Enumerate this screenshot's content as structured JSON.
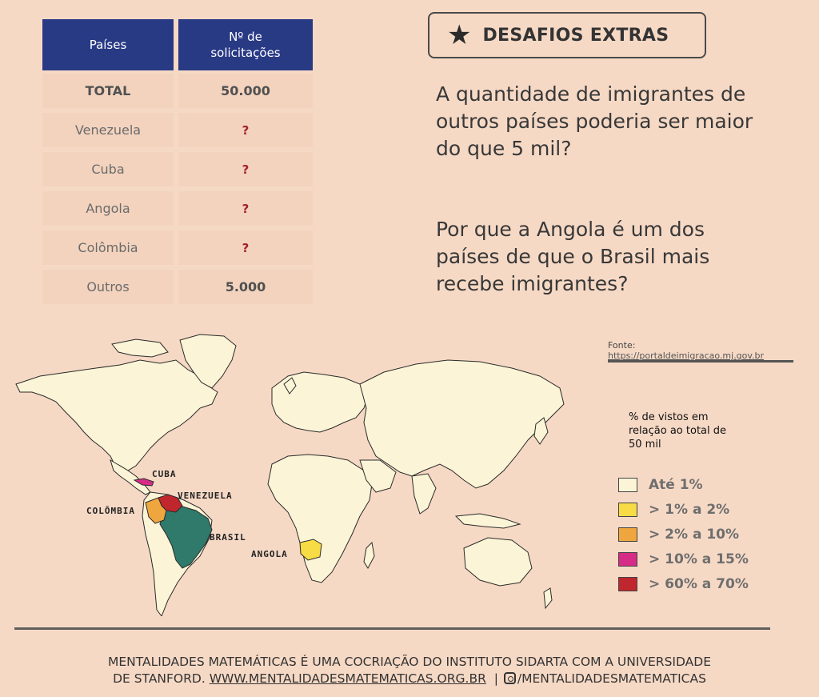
{
  "table": {
    "headers": {
      "country": "Países",
      "requests_line1": "Nº de",
      "requests_line2": "solicitações"
    },
    "rows": [
      {
        "country": "TOTAL",
        "value": "50.000"
      },
      {
        "country": "Venezuela",
        "value": "?"
      },
      {
        "country": "Cuba",
        "value": "?"
      },
      {
        "country": "Angola",
        "value": "?"
      },
      {
        "country": "Colômbia",
        "value": "?"
      },
      {
        "country": "Outros",
        "value": "5.000"
      }
    ]
  },
  "challenge": {
    "title": "DESAFIOS EXTRAS",
    "icon": "star-icon"
  },
  "questions": {
    "q1": "A quantidade de imigrantes de outros países poderia ser maior do que 5 mil?",
    "q2": "Por que a Angola é um dos países de que o Brasil mais recebe imigrantes?"
  },
  "source": {
    "label": "Fonte:",
    "url": "https://portaldeimigracao.mj.gov.br"
  },
  "map": {
    "labels": {
      "cuba": "CUBA",
      "venezuela": "VENEZUELA",
      "colombia": "COLÔMBIA",
      "brasil": "BRASIL",
      "angola": "ANGOLA"
    },
    "colors": {
      "default": "#fbf4d6",
      "venezuela": "#c0262d",
      "colombia": "#efa63e",
      "cuba": "#d62b86",
      "angola": "#f7dc45",
      "brasil": "#2f7a6a"
    }
  },
  "legend": {
    "title": "% de vistos em relação ao total de 50 mil",
    "items": [
      {
        "label": "Até 1%",
        "color": "#fbf4d6"
      },
      {
        "label": "> 1% a 2%",
        "color": "#f7dc45"
      },
      {
        "label": "> 2% a 10%",
        "color": "#efa63e"
      },
      {
        "label": "> 10% a 15%",
        "color": "#d62b86"
      },
      {
        "label": "> 60% a 70%",
        "color": "#c0262d"
      }
    ]
  },
  "footer": {
    "line1": "MENTALIDADES MATEMÁTICAS É UMA COCRIAÇÃO DO INSTITUTO SIDARTA COM A UNIVERSIDADE",
    "line2_prefix": "DE STANFORD.",
    "link": "WWW.MENTALIDADESMATEMATICAS.ORG.BR",
    "separator": "|",
    "social": "/MENTALIDADESMATEMATICAS",
    "social_icon": "instagram-icon"
  }
}
